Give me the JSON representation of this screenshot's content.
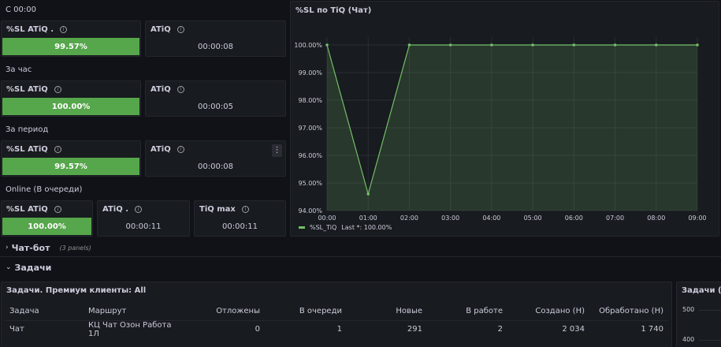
{
  "sections": {
    "since_midnight": "С 00:00",
    "per_hour": "За час",
    "per_period": "За период",
    "online": "Online (В очереди)"
  },
  "stats": {
    "s1": {
      "sl_title": "%SL ATiQ .",
      "sl_value": "99.57%",
      "atiq_title": "ATiQ",
      "atiq_value": "00:00:08"
    },
    "s2": {
      "sl_title": "%SL ATiQ",
      "sl_value": "100.00%",
      "atiq_title": "ATiQ",
      "atiq_value": "00:00:05"
    },
    "s3": {
      "sl_title": "%SL ATiQ",
      "sl_value": "99.57%",
      "atiq_title": "ATiQ",
      "atiq_value": "00:00:08",
      "menu_glyph": "⋮"
    },
    "s4": {
      "sl_title": "%SL ATiQ",
      "sl_value": "100.00%",
      "atiq_title": "ATiQ .",
      "atiq_value": "00:00:11",
      "tiq_title": "TiQ max",
      "tiq_value": "00:00:11"
    }
  },
  "info_glyph": "i",
  "chart_panel": {
    "title": "%SL по TiQ (Чат)"
  },
  "chart_data": {
    "type": "area",
    "title": "%SL по TiQ (Чат)",
    "x": [
      "00:00",
      "01:00",
      "02:00",
      "03:00",
      "04:00",
      "05:00",
      "06:00",
      "07:00",
      "08:00",
      "09:00"
    ],
    "y_ticks": [
      "100.00%",
      "99.00%",
      "98.00%",
      "97.00%",
      "96.00%",
      "95.00%",
      "94.00%"
    ],
    "ylim": [
      94,
      100
    ],
    "series": [
      {
        "name": "%SL_TiQ",
        "values": [
          100,
          94.6,
          100,
          100,
          100,
          100,
          100,
          100,
          100,
          100
        ],
        "color": "#73bf69"
      }
    ],
    "legend": {
      "position": "bottom-left",
      "series_label": "%SL_TiQ",
      "stat_text": "Last *: 100.00%"
    },
    "grid": true
  },
  "rows": {
    "chatbot": {
      "chevron": "›",
      "label": "Чат-бот",
      "sub": "(3 panels)"
    },
    "tasks": {
      "chevron": "⌄",
      "label": "Задачи"
    }
  },
  "tasks_table": {
    "title": "Задачи. Премиум клиенты: All",
    "columns": [
      "Задача",
      "Маршрут",
      "Отложены",
      "В очереди",
      "Новые",
      "В работе",
      "Создано (Н)",
      "Обработано (Н)"
    ],
    "rows": [
      [
        "Чат",
        "КЦ Чат Озон Работа 1Л",
        "0",
        "1",
        "291",
        "2",
        "2 034",
        "1 740"
      ]
    ]
  },
  "side_panel": {
    "title": "Задачи (Ча",
    "y_ticks": [
      "500",
      "400"
    ]
  },
  "colors": {
    "green": "#56a64b",
    "line": "#73bf69",
    "panel": "#181b1f",
    "bg": "#111217"
  }
}
